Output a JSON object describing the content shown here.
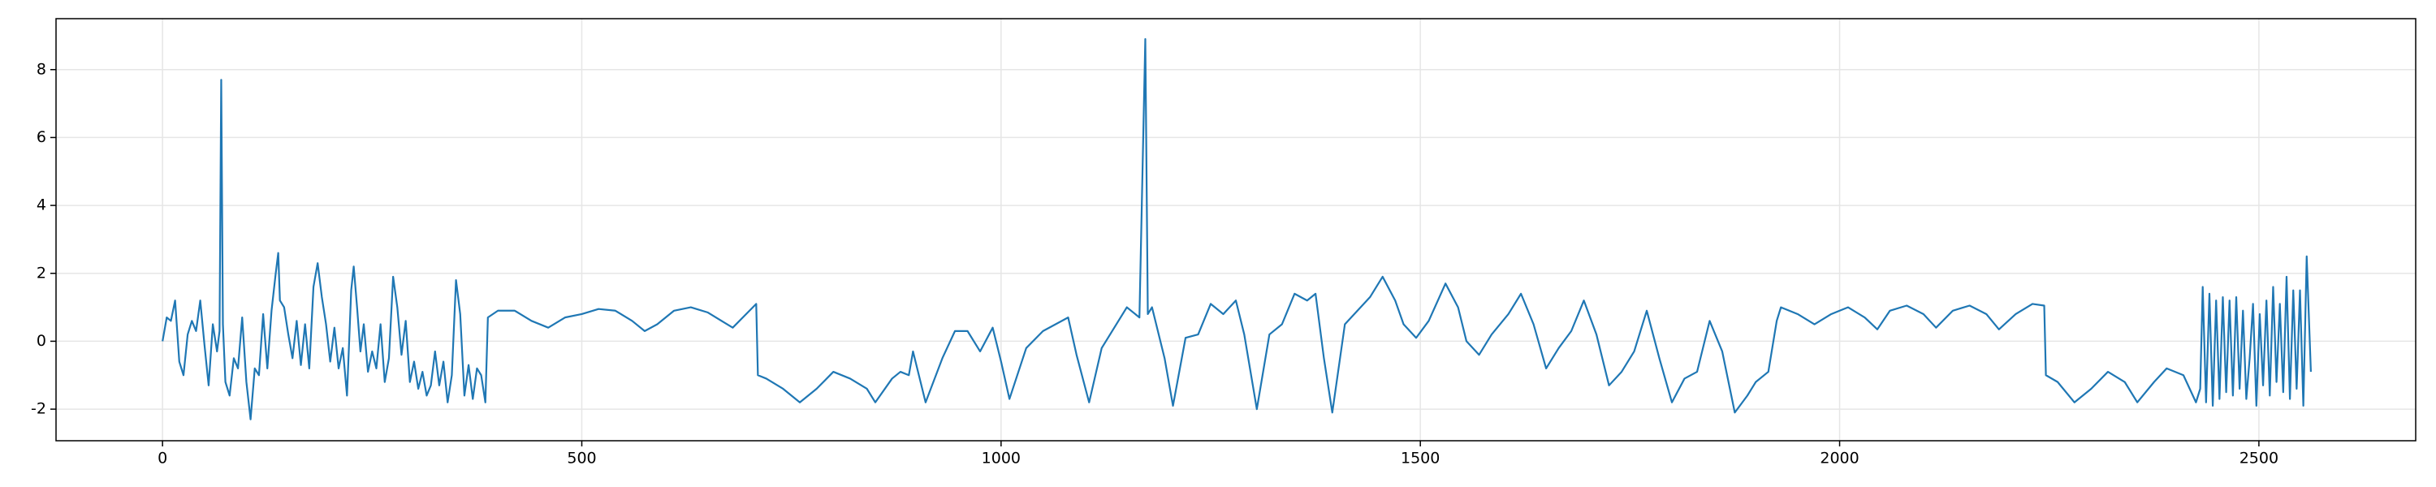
{
  "chart_data": {
    "type": "line",
    "x": [
      0,
      5,
      10,
      15,
      20,
      25,
      30,
      35,
      40,
      45,
      50,
      55,
      60,
      65,
      68,
      70,
      72,
      75,
      80,
      85,
      90,
      95,
      100,
      105,
      110,
      115,
      120,
      125,
      130,
      135,
      138,
      140,
      145,
      150,
      155,
      160,
      165,
      170,
      175,
      180,
      185,
      190,
      195,
      200,
      205,
      210,
      215,
      220,
      225,
      228,
      232,
      236,
      240,
      245,
      250,
      255,
      260,
      265,
      270,
      275,
      280,
      285,
      290,
      295,
      300,
      305,
      310,
      315,
      320,
      325,
      330,
      335,
      340,
      345,
      350,
      355,
      360,
      365,
      370,
      375,
      380,
      385,
      388,
      400,
      420,
      440,
      460,
      480,
      500,
      520,
      540,
      560,
      575,
      590,
      610,
      630,
      650,
      670,
      680,
      700,
      708,
      710,
      720,
      740,
      760,
      780,
      800,
      820,
      840,
      850,
      870,
      880,
      890,
      895,
      910,
      930,
      945,
      960,
      975,
      990,
      1000,
      1010,
      1030,
      1050,
      1065,
      1080,
      1090,
      1105,
      1120,
      1135,
      1150,
      1165,
      1172,
      1175,
      1180,
      1195,
      1205,
      1220,
      1235,
      1250,
      1265,
      1280,
      1290,
      1305,
      1320,
      1335,
      1350,
      1365,
      1375,
      1385,
      1395,
      1410,
      1425,
      1440,
      1455,
      1470,
      1480,
      1495,
      1510,
      1530,
      1545,
      1555,
      1570,
      1585,
      1605,
      1620,
      1635,
      1650,
      1665,
      1680,
      1695,
      1710,
      1725,
      1740,
      1755,
      1770,
      1785,
      1800,
      1815,
      1830,
      1845,
      1860,
      1875,
      1890,
      1900,
      1915,
      1925,
      1930,
      1950,
      1970,
      1990,
      2010,
      2030,
      2045,
      2060,
      2080,
      2100,
      2115,
      2135,
      2155,
      2175,
      2190,
      2210,
      2230,
      2244,
      2246,
      2260,
      2280,
      2300,
      2320,
      2340,
      2355,
      2375,
      2390,
      2410,
      2425,
      2430,
      2433,
      2437,
      2441,
      2445,
      2449,
      2453,
      2457,
      2461,
      2465,
      2469,
      2473,
      2477,
      2481,
      2485,
      2489,
      2493,
      2497,
      2501,
      2505,
      2509,
      2513,
      2517,
      2521,
      2525,
      2529,
      2533,
      2537,
      2541,
      2545,
      2549,
      2553,
      2557,
      2562
    ],
    "series": [
      {
        "color": "#1f77b4",
        "values": [
          0,
          0.7,
          0.6,
          1.2,
          -0.6,
          -1.0,
          0.2,
          0.6,
          0.3,
          1.2,
          -0.1,
          -1.3,
          0.5,
          -0.3,
          0.3,
          7.7,
          0.5,
          -1.2,
          -1.6,
          -0.5,
          -0.8,
          0.7,
          -1.2,
          -2.3,
          -0.8,
          -1.0,
          0.8,
          -0.8,
          0.9,
          2.0,
          2.6,
          1.2,
          1.0,
          0.2,
          -0.5,
          0.6,
          -0.7,
          0.5,
          -0.8,
          1.6,
          2.3,
          1.3,
          0.5,
          -0.6,
          0.4,
          -0.8,
          -0.2,
          -1.6,
          1.5,
          2.2,
          1.0,
          -0.3,
          0.5,
          -0.9,
          -0.3,
          -0.8,
          0.5,
          -1.2,
          -0.5,
          1.9,
          1.0,
          -0.4,
          0.6,
          -1.2,
          -0.6,
          -1.4,
          -0.9,
          -1.6,
          -1.3,
          -0.3,
          -1.3,
          -0.6,
          -1.8,
          -1.0,
          1.8,
          0.8,
          -1.6,
          -0.7,
          -1.7,
          -0.8,
          -1.0,
          -1.8,
          0.7,
          0.9,
          0.9,
          0.6,
          0.4,
          0.7,
          0.8,
          0.95,
          0.9,
          0.6,
          0.3,
          0.5,
          0.9,
          1.0,
          0.85,
          0.55,
          0.4,
          0.9,
          1.1,
          -1.0,
          -1.1,
          -1.4,
          -1.8,
          -1.4,
          -0.9,
          -1.1,
          -1.4,
          -1.8,
          -1.1,
          -0.9,
          -1.0,
          -0.3,
          -1.8,
          -0.5,
          0.3,
          0.3,
          -0.3,
          0.4,
          -0.6,
          -1.7,
          -0.2,
          0.3,
          0.5,
          0.7,
          -0.4,
          -1.8,
          -0.2,
          0.4,
          1.0,
          0.7,
          8.9,
          0.8,
          1.0,
          -0.5,
          -1.9,
          0.1,
          0.2,
          1.1,
          0.8,
          1.2,
          0.2,
          -2.0,
          0.2,
          0.5,
          1.4,
          1.2,
          1.4,
          -0.5,
          -2.1,
          0.5,
          0.9,
          1.3,
          1.9,
          1.2,
          0.5,
          0.1,
          0.6,
          1.7,
          1.0,
          0.0,
          -0.4,
          0.2,
          0.8,
          1.4,
          0.5,
          -0.8,
          -0.2,
          0.3,
          1.2,
          0.2,
          -1.3,
          -0.9,
          -0.3,
          0.9,
          -0.5,
          -1.8,
          -1.1,
          -0.9,
          0.6,
          -0.3,
          -2.1,
          -1.6,
          -1.2,
          -0.9,
          0.6,
          1.0,
          0.8,
          0.5,
          0.8,
          1.0,
          0.7,
          0.35,
          0.9,
          1.05,
          0.8,
          0.4,
          0.9,
          1.05,
          0.8,
          0.35,
          0.8,
          1.1,
          1.05,
          -1.0,
          -1.2,
          -1.8,
          -1.4,
          -0.9,
          -1.2,
          -1.8,
          -1.2,
          -0.8,
          -1.0,
          -1.8,
          -1.4,
          1.6,
          -1.8,
          1.4,
          -1.9,
          1.2,
          -1.7,
          1.3,
          -1.5,
          1.2,
          -1.6,
          1.3,
          -1.4,
          0.9,
          -1.7,
          -0.5,
          1.1,
          -1.9,
          0.8,
          -1.3,
          1.2,
          -1.6,
          1.6,
          -1.2,
          1.1,
          -1.5,
          1.9,
          -1.7,
          1.5,
          -1.4,
          1.5,
          -1.9,
          2.5,
          -0.9
        ]
      }
    ],
    "xlim": [
      -127,
      2687
    ],
    "ylim": [
      -2.93,
      9.5
    ],
    "xticks": [
      0,
      500,
      1000,
      1500,
      2000,
      2500
    ],
    "yticks": [
      -2,
      0,
      2,
      4,
      6,
      8
    ],
    "grid": true
  }
}
